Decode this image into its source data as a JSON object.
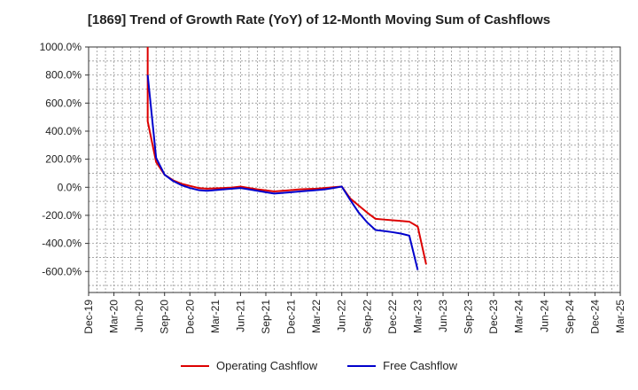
{
  "chart_data": {
    "type": "line",
    "title": "[1869]  Trend of Growth Rate (YoY) of 12-Month Moving Sum of Cashflows",
    "xlabel": "",
    "ylabel": "",
    "ylim": [
      -750,
      1000
    ],
    "yticks": [
      1000,
      800,
      600,
      400,
      200,
      0,
      -200,
      -400,
      -600
    ],
    "ytick_labels": [
      "1000.0%",
      "800.0%",
      "600.0%",
      "400.0%",
      "200.0%",
      "0.0%",
      "-200.0%",
      "-400.0%",
      "-600.0%"
    ],
    "x_labels": [
      "Dec-19",
      "Mar-20",
      "Jun-20",
      "Sep-20",
      "Dec-20",
      "Mar-21",
      "Jun-21",
      "Sep-21",
      "Dec-21",
      "Mar-22",
      "Jun-22",
      "Sep-22",
      "Dec-22",
      "Mar-23",
      "Jun-23",
      "Sep-23",
      "Dec-23",
      "Mar-24",
      "Jun-24",
      "Sep-24",
      "Dec-24",
      "Mar-25"
    ],
    "grid": true,
    "legend_position": "bottom",
    "series": [
      {
        "name": "Operating Cashflow",
        "color": "#dd0000",
        "points": [
          [
            7.0,
            1000
          ],
          [
            7.0,
            470
          ],
          [
            8,
            180
          ],
          [
            9,
            90
          ],
          [
            10,
            50
          ],
          [
            11,
            25
          ],
          [
            12,
            10
          ],
          [
            13,
            -5
          ],
          [
            14,
            -10
          ],
          [
            15,
            -8
          ],
          [
            16,
            -5
          ],
          [
            17,
            -2
          ],
          [
            18,
            5
          ],
          [
            19,
            -5
          ],
          [
            20,
            -15
          ],
          [
            21,
            -22
          ],
          [
            22,
            -30
          ],
          [
            23,
            -25
          ],
          [
            24,
            -20
          ],
          [
            25,
            -15
          ],
          [
            26,
            -12
          ],
          [
            27,
            -10
          ],
          [
            28,
            -5
          ],
          [
            29,
            0
          ],
          [
            30,
            5
          ],
          [
            31,
            -80
          ],
          [
            32,
            -130
          ],
          [
            33,
            -180
          ],
          [
            34,
            -225
          ],
          [
            35,
            -230
          ],
          [
            36,
            -235
          ],
          [
            37,
            -240
          ],
          [
            38,
            -245
          ],
          [
            39,
            -280
          ],
          [
            40,
            -550
          ]
        ]
      },
      {
        "name": "Free Cashflow",
        "color": "#0000cc",
        "points": [
          [
            7.0,
            800
          ],
          [
            8,
            210
          ],
          [
            9,
            90
          ],
          [
            10,
            45
          ],
          [
            11,
            15
          ],
          [
            12,
            -5
          ],
          [
            13,
            -20
          ],
          [
            14,
            -25
          ],
          [
            15,
            -20
          ],
          [
            16,
            -15
          ],
          [
            17,
            -10
          ],
          [
            18,
            -5
          ],
          [
            19,
            -15
          ],
          [
            20,
            -25
          ],
          [
            21,
            -35
          ],
          [
            22,
            -45
          ],
          [
            23,
            -40
          ],
          [
            24,
            -35
          ],
          [
            25,
            -30
          ],
          [
            26,
            -25
          ],
          [
            27,
            -20
          ],
          [
            28,
            -15
          ],
          [
            29,
            -5
          ],
          [
            30,
            5
          ],
          [
            31,
            -90
          ],
          [
            32,
            -180
          ],
          [
            33,
            -250
          ],
          [
            34,
            -305
          ],
          [
            35,
            -312
          ],
          [
            36,
            -320
          ],
          [
            37,
            -330
          ],
          [
            38,
            -345
          ],
          [
            39,
            -590
          ]
        ]
      }
    ]
  }
}
